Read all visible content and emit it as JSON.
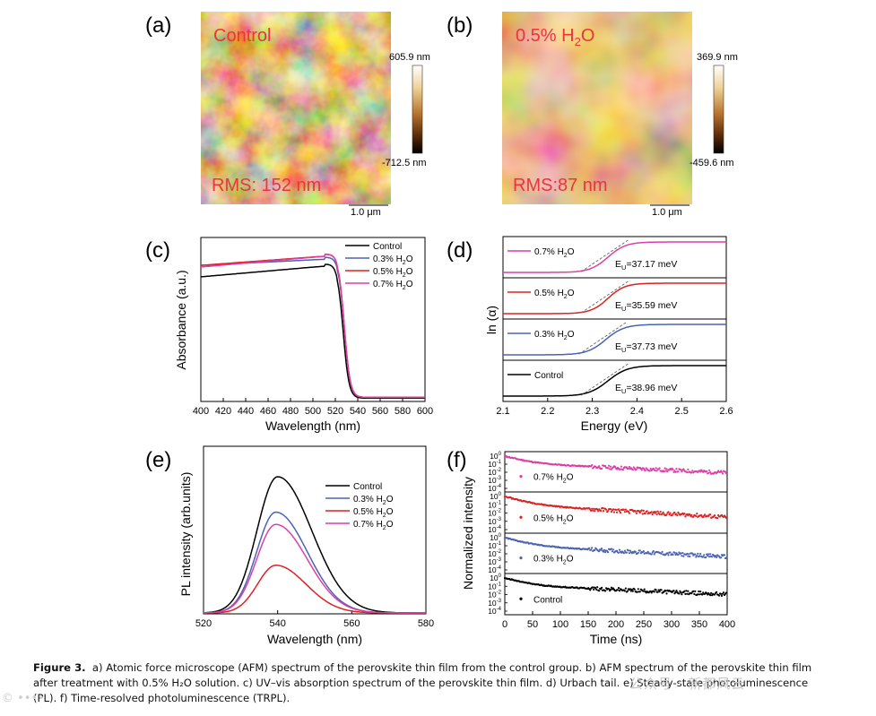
{
  "caption": {
    "label": "Figure 3.",
    "line1": "a) Atomic force microscope (AFM) spectrum of the perovskite thin film from the control group. b) AFM spectrum of the perovskite thin film",
    "line2": "after treatment with 0.5% H₂O solution. c) UV–vis absorption spectrum of the perovskite thin film. d) Urbach tail. e) Steady-state photoluminescence",
    "line3": "(PL). f) Time-resolved photoluminescence (TRPL)."
  },
  "watermarks": {
    "left": "© ••••",
    "right": "公众号 · 新都风云"
  },
  "colors": {
    "control": "#000000",
    "h03": "#4a63b2",
    "h05": "#dd2222",
    "h07": "#dc3fa6",
    "label_red": "#e8363a"
  },
  "chart_data": [
    {
      "panel": "(a)",
      "type": "heatmap",
      "image": "AFM height map",
      "label": "Control",
      "rms": "RMS: 152 nm",
      "scale_max": "605.9 nm",
      "scale_min": "-712.5 nm",
      "scale_bar": "1.0 μm"
    },
    {
      "panel": "(b)",
      "type": "heatmap",
      "image": "AFM height map",
      "label_prefix": "0.5% H",
      "label_sub": "2",
      "label_suffix": "O",
      "rms": "RMS:87 nm",
      "scale_max": "369.9 nm",
      "scale_min": "-459.6 nm",
      "scale_bar": "1.0 μm"
    },
    {
      "panel": "(c)",
      "type": "line",
      "xlabel": "Wavelength (nm)",
      "ylabel": "Absorbance (a.u.)",
      "xlim": [
        400,
        600
      ],
      "xticks": [
        400,
        420,
        440,
        460,
        480,
        500,
        520,
        540,
        560,
        580,
        600
      ],
      "series": [
        {
          "name": "Control",
          "plateau_start": 0.76,
          "plateau_end": 0.83,
          "edge": 527,
          "floor": 0.02
        },
        {
          "name": "0.3% H2O",
          "plateau_start": 0.83,
          "plateau_end": 0.87,
          "edge": 528,
          "floor": 0.025
        },
        {
          "name": "0.5% H2O",
          "plateau_start": 0.83,
          "plateau_end": 0.89,
          "edge": 528,
          "floor": 0.025
        },
        {
          "name": "0.7% H2O",
          "plateau_start": 0.82,
          "plateau_end": 0.89,
          "edge": 528,
          "floor": 0.025
        }
      ]
    },
    {
      "panel": "(d)",
      "type": "line",
      "xlabel": "Energy (eV)",
      "ylabel": "ln (α)",
      "xlim": [
        2.1,
        2.6
      ],
      "xticks": [
        2.1,
        2.2,
        2.3,
        2.4,
        2.5,
        2.6
      ],
      "series": [
        {
          "name": "0.7% H2O",
          "eu_label": "E",
          "eu_sub": "U",
          "eu_value": "=37.17 meV",
          "center": 2.335,
          "width": 0.02
        },
        {
          "name": "0.5% H2O",
          "eu_label": "E",
          "eu_sub": "U",
          "eu_value": "=35.59 meV",
          "center": 2.335,
          "width": 0.019
        },
        {
          "name": "0.3% H2O",
          "eu_label": "E",
          "eu_sub": "U",
          "eu_value": "=37.73 meV",
          "center": 2.33,
          "width": 0.021
        },
        {
          "name": "Control",
          "eu_label": "E",
          "eu_sub": "U",
          "eu_value": "=38.96 meV",
          "center": 2.335,
          "width": 0.022
        }
      ]
    },
    {
      "panel": "(e)",
      "type": "line",
      "xlabel": "Wavelength (nm)",
      "ylabel": "PL intensity (arb.units)",
      "xlim": [
        520,
        580
      ],
      "xticks": [
        520,
        540,
        560,
        580
      ],
      "series": [
        {
          "name": "Control",
          "peak": 1.0,
          "center": 540,
          "sigma": 6.8
        },
        {
          "name": "0.3% H2O",
          "peak": 0.74,
          "center": 539.5,
          "sigma": 6.3
        },
        {
          "name": "0.5% H2O",
          "peak": 0.35,
          "center": 539.5,
          "sigma": 6.0
        },
        {
          "name": "0.7% H2O",
          "peak": 0.65,
          "center": 539.5,
          "sigma": 6.3
        }
      ]
    },
    {
      "panel": "(f)",
      "type": "scatter",
      "xlabel": "Time (ns)",
      "ylabel": "Normalized intensity",
      "xlim": [
        0,
        400
      ],
      "xticks": [
        0,
        50,
        100,
        150,
        200,
        250,
        300,
        350,
        400
      ],
      "yticks_exp": [
        "0",
        "-1",
        "-2",
        "-3",
        "-4"
      ],
      "series": [
        {
          "name": "0.7% H2O",
          "tau": 140,
          "amp2": 0.15
        },
        {
          "name": "0.5% H2O",
          "tau": 110,
          "amp2": 0.12
        },
        {
          "name": "0.3% H2O",
          "tau": 120,
          "amp2": 0.12
        },
        {
          "name": "Control",
          "tau": 150,
          "amp2": 0.15
        }
      ]
    }
  ],
  "legend_labels": [
    {
      "name": "Control",
      "text": "Control",
      "sub": "",
      "tail": ""
    },
    {
      "name": "0.3% H2O",
      "text": "0.3% H",
      "sub": "2",
      "tail": "O"
    },
    {
      "name": "0.5% H2O",
      "text": "0.5% H",
      "sub": "2",
      "tail": "O"
    },
    {
      "name": "0.7% H2O",
      "text": "0.7% H",
      "sub": "2",
      "tail": "O"
    }
  ]
}
